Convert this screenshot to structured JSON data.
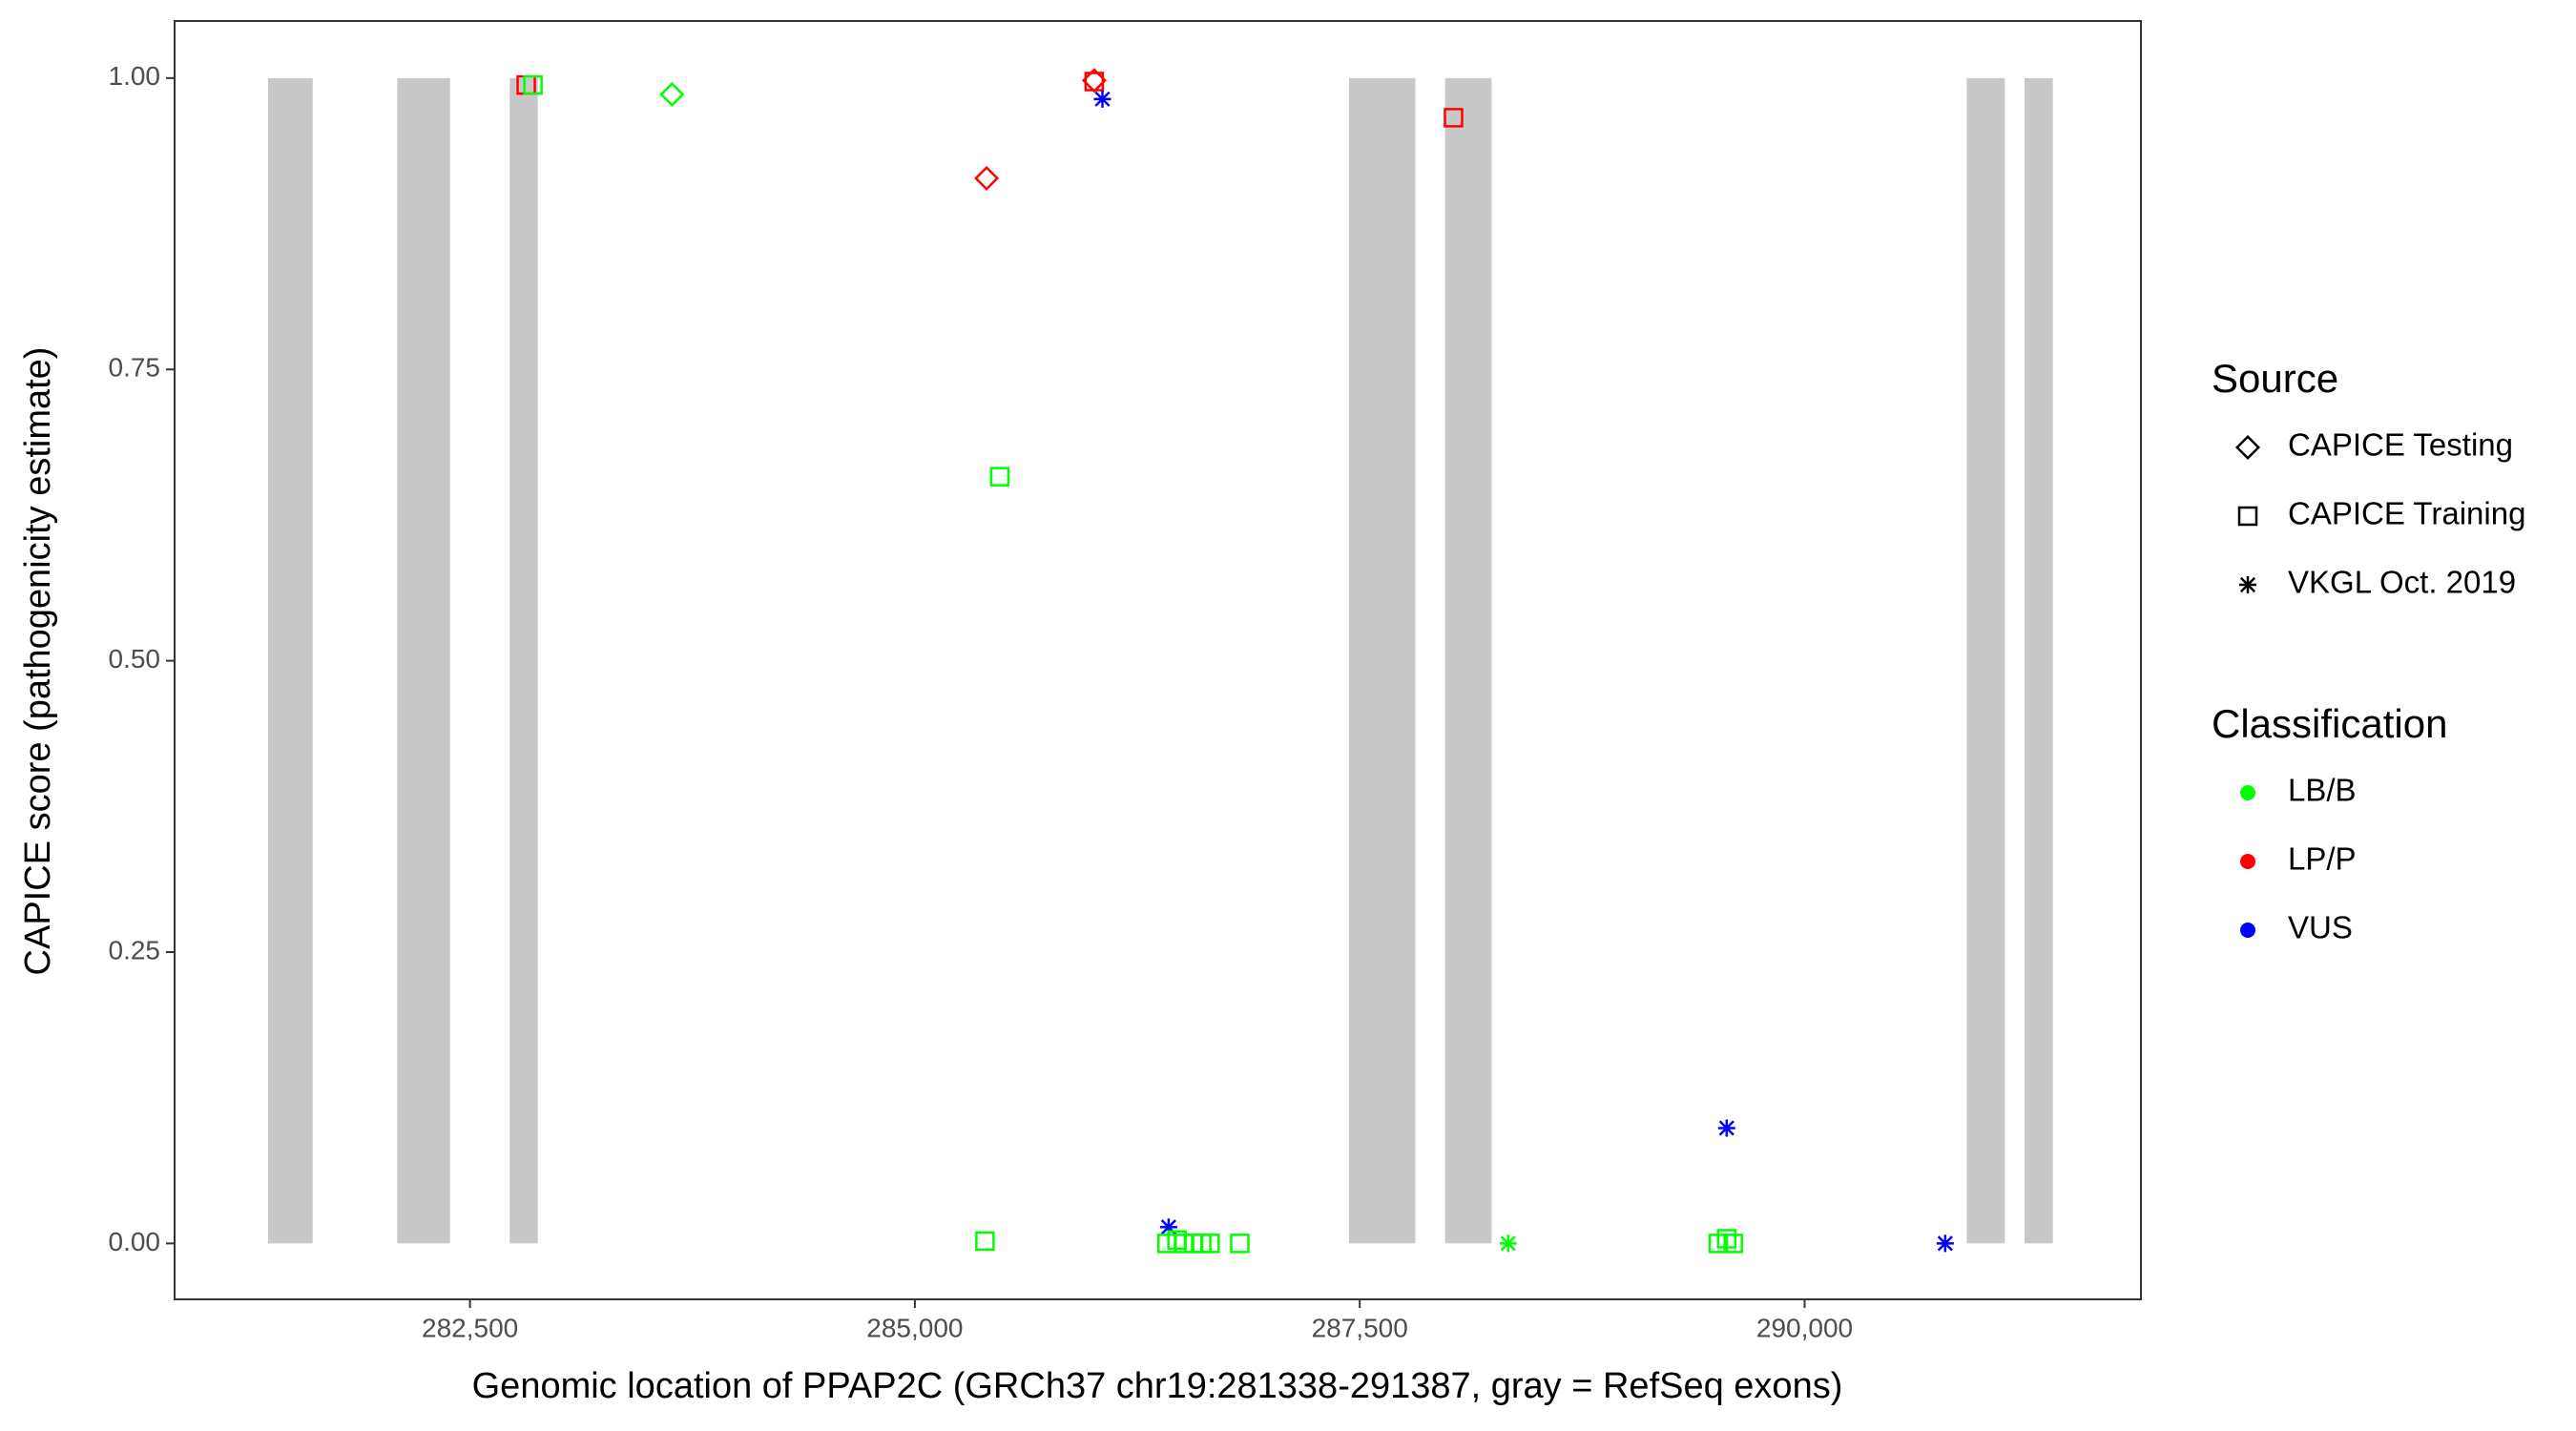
{
  "chart_data": {
    "type": "scatter",
    "xlabel": "Genomic location of PPAP2C (GRCh37 chr19:281338-291387, gray = RefSeq exons)",
    "ylabel": "CAPICE score (pathogenicity estimate)",
    "xlim": [
      280840,
      291890
    ],
    "ylim": [
      -0.048,
      1.049
    ],
    "xticks": [
      {
        "value": 282500,
        "label": "282,500"
      },
      {
        "value": 285000,
        "label": "285,000"
      },
      {
        "value": 287500,
        "label": "287,500"
      },
      {
        "value": 290000,
        "label": "290,000"
      }
    ],
    "yticks": [
      {
        "value": 0,
        "label": "0.00"
      },
      {
        "value": 0.25,
        "label": "0.25"
      },
      {
        "value": 0.5,
        "label": "0.50"
      },
      {
        "value": 0.75,
        "label": "0.75"
      },
      {
        "value": 1,
        "label": "1.00"
      }
    ],
    "exon_color": "#c8c8c8",
    "exons": [
      [
        281365,
        281616
      ],
      [
        282091,
        282388
      ],
      [
        282723,
        282881
      ],
      [
        287440,
        287813
      ],
      [
        287980,
        288241
      ],
      [
        290911,
        291125
      ],
      [
        291236,
        291395
      ]
    ],
    "source_title": "Source",
    "sources": [
      {
        "name": "CAPICE Testing",
        "shape": "diamond"
      },
      {
        "name": "CAPICE Training",
        "shape": "square"
      },
      {
        "name": "VKGL Oct. 2019",
        "shape": "asterisk"
      }
    ],
    "classification_title": "Classification",
    "classifications": [
      {
        "name": "LB/B",
        "color": "#00ff00"
      },
      {
        "name": "LP/P",
        "color": "#ff0000"
      },
      {
        "name": "VUS",
        "color": "#0000ff"
      }
    ],
    "points": {
      "x": [
        282816,
        282854,
        283635,
        285403,
        285477,
        286008,
        286008,
        286054,
        288027,
        285394,
        286426,
        286417,
        286473,
        286510,
        286566,
        286612,
        286659,
        286826,
        288334,
        289515,
        289562,
        289599,
        289562,
        290790
      ],
      "y": [
        0.994,
        0.994,
        0.986,
        0.914,
        0.658,
        0.997,
        0.998,
        0.982,
        0.966,
        0.002,
        0.014,
        0,
        0.003,
        0,
        0,
        0,
        0,
        0,
        0,
        0,
        0.004,
        0,
        0.099,
        0
      ],
      "source": [
        "CAPICE Training",
        "CAPICE Training",
        "CAPICE Testing",
        "CAPICE Testing",
        "CAPICE Training",
        "CAPICE Training",
        "CAPICE Testing",
        "VKGL Oct. 2019",
        "CAPICE Training",
        "CAPICE Training",
        "VKGL Oct. 2019",
        "CAPICE Training",
        "CAPICE Training",
        "CAPICE Training",
        "CAPICE Training",
        "CAPICE Training",
        "CAPICE Training",
        "CAPICE Training",
        "VKGL Oct. 2019",
        "CAPICE Training",
        "CAPICE Training",
        "CAPICE Training",
        "VKGL Oct. 2019",
        "VKGL Oct. 2019"
      ],
      "classification": [
        "LP/P",
        "LB/B",
        "LB/B",
        "LP/P",
        "LB/B",
        "LP/P",
        "LP/P",
        "VUS",
        "LP/P",
        "LB/B",
        "VUS",
        "LB/B",
        "LB/B",
        "LB/B",
        "LB/B",
        "LB/B",
        "LB/B",
        "LB/B",
        "LB/B",
        "LB/B",
        "LB/B",
        "LB/B",
        "VUS",
        "VUS"
      ]
    }
  }
}
